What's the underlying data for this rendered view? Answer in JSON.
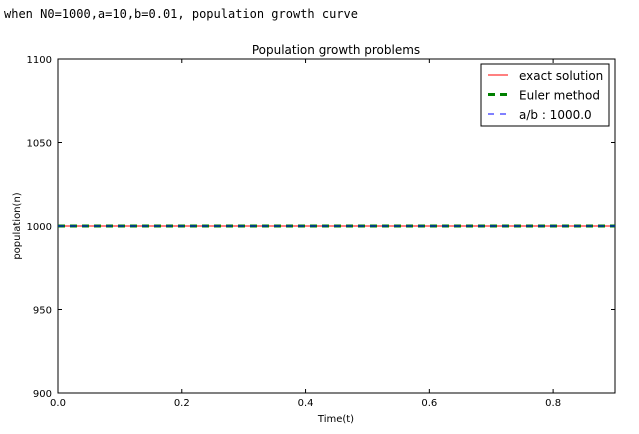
{
  "cell_output": {
    "caption": "when N0=1000,a=10,b=0.01, population growth curve"
  },
  "chart_data": {
    "type": "line",
    "title": "Population growth problems",
    "xlabel": "Time(t)",
    "ylabel": "population(n)",
    "xlim": [
      0.0,
      0.9
    ],
    "ylim": [
      900,
      1100
    ],
    "xticks": [
      0.0,
      0.2,
      0.4,
      0.6,
      0.8
    ],
    "xtick_labels": [
      "0.0",
      "0.2",
      "0.4",
      "0.6",
      "0.8"
    ],
    "yticks": [
      900,
      950,
      1000,
      1050,
      1100
    ],
    "ytick_labels": [
      "900",
      "950",
      "1000",
      "1050",
      "1100"
    ],
    "grid": false,
    "legend_position": "top-right",
    "series": [
      {
        "name": "exact solution",
        "color": "#ff0000",
        "style": "solid",
        "x": [
          0.0,
          0.9
        ],
        "y": [
          1000,
          1000
        ]
      },
      {
        "name": "Euler method",
        "color": "#008000",
        "style": "dashed-thick",
        "x": [
          0.0,
          0.9
        ],
        "y": [
          1000,
          1000
        ]
      },
      {
        "name": "a/b : 1000.0",
        "color": "#0000ff",
        "style": "dashed",
        "x": [
          0.0,
          0.9
        ],
        "y": [
          1000,
          1000
        ]
      }
    ]
  }
}
